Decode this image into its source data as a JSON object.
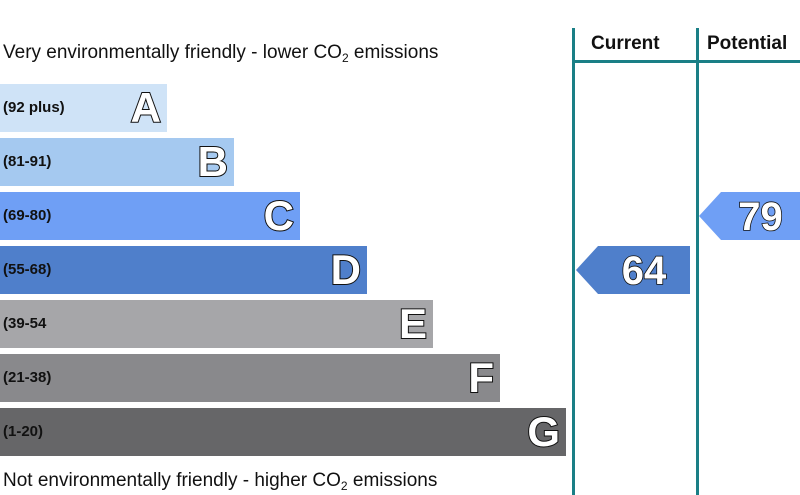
{
  "captions": {
    "top_prefix": "Very environmentally friendly - lower CO",
    "top_suffix": " emissions",
    "bottom_prefix": "Not environmentally friendly - higher CO",
    "bottom_suffix": " emissions",
    "subscript": "2"
  },
  "columns": {
    "current": "Current",
    "potential": "Potential"
  },
  "chart_data": {
    "type": "bar",
    "bands": [
      {
        "letter": "A",
        "range": "(92 plus)",
        "color": "#cfe3f7"
      },
      {
        "letter": "B",
        "range": "(81-91)",
        "color": "#a5c9f0"
      },
      {
        "letter": "C",
        "range": "(69-80)",
        "color": "#6f9ff5"
      },
      {
        "letter": "D",
        "range": "(55-68)",
        "color": "#4f7fcb"
      },
      {
        "letter": "E",
        "range": "(39-54",
        "color": "#a6a6a9"
      },
      {
        "letter": "F",
        "range": "(21-38)",
        "color": "#89898c"
      },
      {
        "letter": "G",
        "range": "(1-20)",
        "color": "#666668"
      }
    ],
    "current": {
      "value": 64,
      "band": "D",
      "color": "#4f7fcb"
    },
    "potential": {
      "value": 79,
      "band": "C",
      "color": "#6f9ff5"
    }
  }
}
